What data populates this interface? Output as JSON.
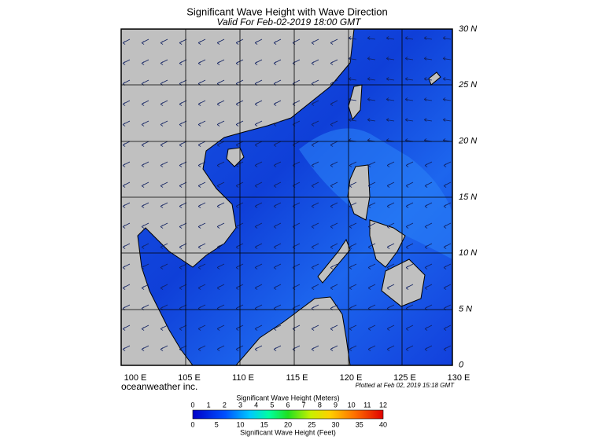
{
  "header": {
    "title": "Significant Wave Height with Wave Direction",
    "subtitle": "Valid For Feb-02-2019 18:00 GMT"
  },
  "map": {
    "lon_labels": [
      "100 E",
      "105 E",
      "110 E",
      "115 E",
      "120 E",
      "125 E",
      "130 E"
    ],
    "lat_labels": [
      "30 N",
      "25 N",
      "20 N",
      "15 N",
      "10 N",
      "5 N",
      "0"
    ]
  },
  "credits": {
    "left": "oceanweather inc.",
    "right": "Plotted at Feb 02, 2019 15:18 GMT"
  },
  "colorbar": {
    "title_meters": "Significant Wave Height (Meters)",
    "meters_ticks": [
      0,
      1,
      2,
      3,
      4,
      5,
      6,
      7,
      8,
      9,
      10,
      11,
      12
    ],
    "feet_ticks": [
      0,
      5,
      10,
      15,
      20,
      25,
      30,
      35,
      40
    ],
    "title_feet": "Significant Wave Height (Feet)"
  }
}
